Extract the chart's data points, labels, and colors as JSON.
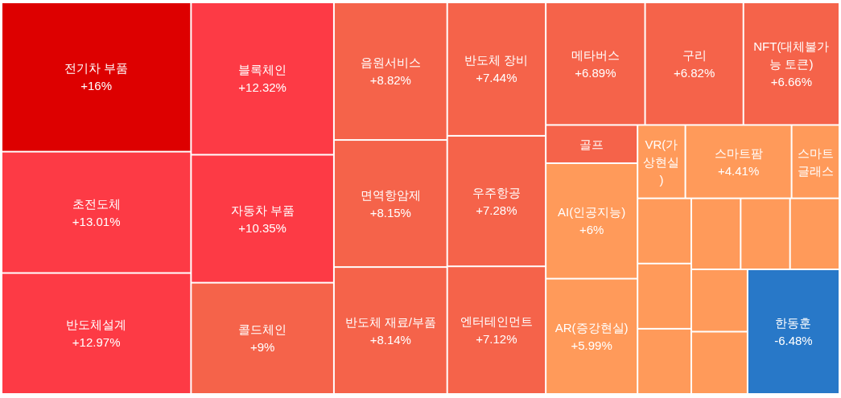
{
  "chart_data": {
    "type": "other",
    "categories": [
      "전기차 부품",
      "초전도체",
      "반도체설계",
      "블록체인",
      "자동차 부품",
      "콜드체인",
      "음원서비스",
      "면역항암제",
      "반도체 재료/부품",
      "반도체 장비",
      "우주항공",
      "엔터테인먼트",
      "메타버스",
      "구리",
      "NFT(대체불가능 토큰)",
      "골프",
      "AI(인공지능)",
      "AR(증강현실)",
      "VR(가상현실)",
      "스마트팜",
      "스마트 글래스",
      null,
      null,
      null,
      null,
      null,
      null,
      null,
      null,
      "한동훈"
    ],
    "values": [
      16,
      13.01,
      12.97,
      12.32,
      10.35,
      9,
      8.82,
      8.15,
      8.14,
      7.44,
      7.28,
      7.12,
      6.89,
      6.82,
      6.66,
      null,
      6,
      5.99,
      null,
      4.41,
      null,
      null,
      null,
      null,
      null,
      null,
      null,
      null,
      null,
      -6.48
    ],
    "value_labels": [
      "+16%",
      "+13.01%",
      "+12.97%",
      "+12.32%",
      "+10.35%",
      "+9%",
      "+8.82%",
      "+8.15%",
      "+8.14%",
      "+7.44%",
      "+7.28%",
      "+7.12%",
      "+6.89%",
      "+6.82%",
      "+6.66%",
      null,
      "+6%",
      "+5.99%",
      null,
      "+4.41%",
      null,
      null,
      null,
      null,
      null,
      null,
      null,
      null,
      null,
      "-6.48%"
    ],
    "colors": [
      "#dd0000",
      "#fd3a45",
      "#fd3a45",
      "#fd3a45",
      "#fd3a45",
      "#f5634a",
      "#f5634a",
      "#f5634a",
      "#f5634a",
      "#f5634a",
      "#f5634a",
      "#f5634a",
      "#f5634a",
      "#f5634a",
      "#f5634a",
      "#f5634a",
      "#ff9a5a",
      "#ff9a5a",
      "#ff9a5a",
      "#ff9a5a",
      "#ff9a5a",
      "#ff9a5a",
      "#ff9a5a",
      "#ff9a5a",
      "#ff9a5a",
      "#ff9a5a",
      "#ff9a5a",
      "#ff9a5a",
      "#ff9a5a",
      "#2878c8"
    ]
  }
}
